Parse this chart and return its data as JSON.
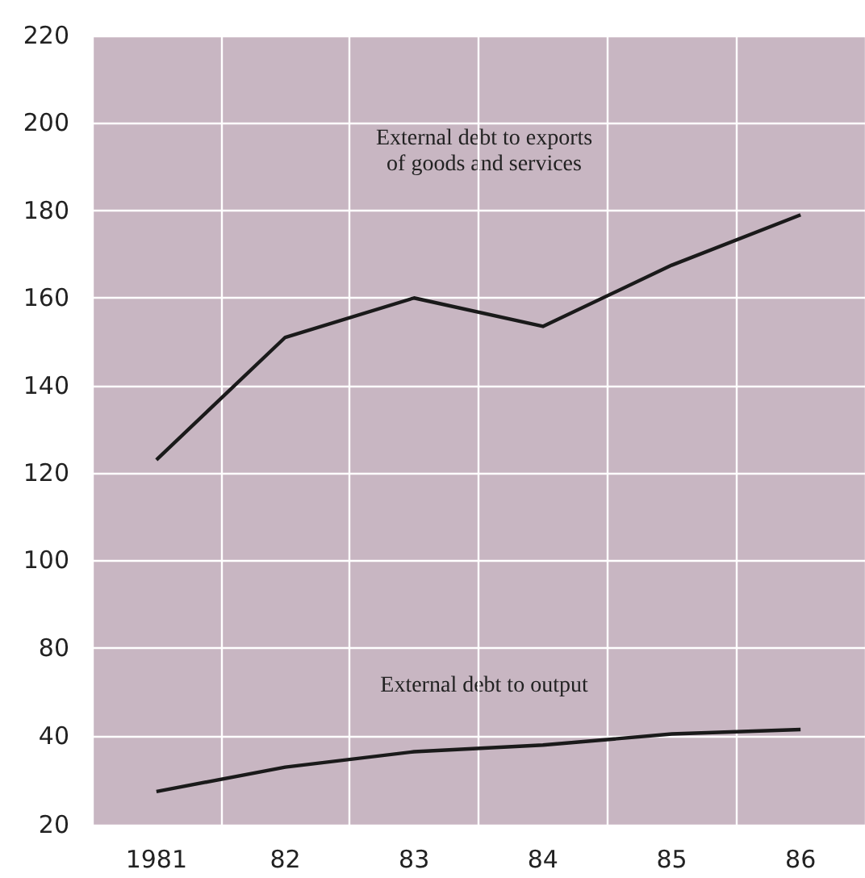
{
  "chart_data": [
    {
      "type": "line",
      "categories": [
        "1981",
        "82",
        "83",
        "84",
        "85",
        "86"
      ],
      "values": [
        123,
        151,
        160,
        153.5,
        167.5,
        179
      ],
      "color": "#1a1a1a",
      "ylim": [
        75,
        220
      ],
      "yticks": [
        80,
        100,
        120,
        140,
        160,
        180,
        200,
        220
      ],
      "grid": true,
      "tick_labels": "y",
      "annotations": [
        "External debt to exports\nof goods and services"
      ]
    },
    {
      "type": "line",
      "categories": [
        "1981",
        "82",
        "83",
        "84",
        "85",
        "86"
      ],
      "values": [
        27.5,
        33,
        36.5,
        38,
        40.5,
        41.5
      ],
      "color": "#1a1a1a",
      "ylim": [
        20,
        55
      ],
      "yticks": [
        20,
        40
      ],
      "grid": true,
      "annotations": [
        "External debt to output"
      ]
    }
  ]
}
